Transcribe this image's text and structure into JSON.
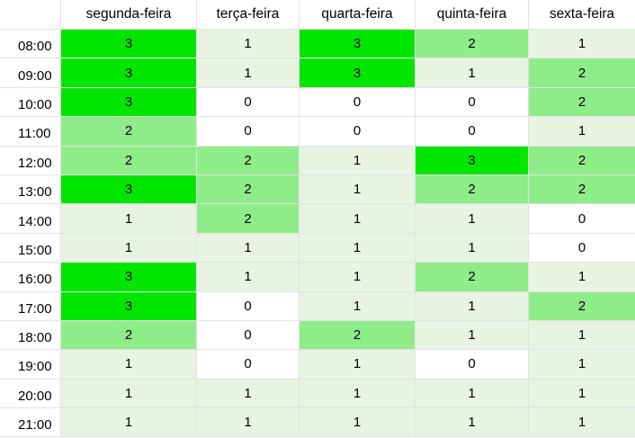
{
  "columns": [
    "segunda-feira",
    "terça-feira",
    "quarta-feira",
    "quinta-feira",
    "sexta-feira"
  ],
  "rows": [
    {
      "time": "08:00",
      "values": [
        "3",
        "1",
        "3",
        "2",
        "1"
      ]
    },
    {
      "time": "09:00",
      "values": [
        "3",
        "1",
        "3",
        "1",
        "2"
      ]
    },
    {
      "time": "10:00",
      "values": [
        "3",
        "0",
        "0",
        "0",
        "2"
      ]
    },
    {
      "time": "11:00",
      "values": [
        "2",
        "0",
        "0",
        "0",
        "1"
      ]
    },
    {
      "time": "12:00",
      "values": [
        "2",
        "2",
        "1",
        "3",
        "2"
      ]
    },
    {
      "time": "13:00",
      "values": [
        "3",
        "2",
        "1",
        "2",
        "2"
      ]
    },
    {
      "time": "14:00",
      "values": [
        "1",
        "2",
        "1",
        "1",
        "0"
      ]
    },
    {
      "time": "15:00",
      "values": [
        "1",
        "1",
        "1",
        "1",
        "0"
      ]
    },
    {
      "time": "16:00",
      "values": [
        "3",
        "1",
        "1",
        "2",
        "1"
      ]
    },
    {
      "time": "17:00",
      "values": [
        "3",
        "0",
        "1",
        "1",
        "2"
      ]
    },
    {
      "time": "18:00",
      "values": [
        "2",
        "0",
        "2",
        "1",
        "1"
      ]
    },
    {
      "time": "19:00",
      "values": [
        "1",
        "0",
        "1",
        "0",
        "1"
      ]
    },
    {
      "time": "20:00",
      "values": [
        "1",
        "1",
        "1",
        "1",
        "1"
      ]
    },
    {
      "time": "21:00",
      "values": [
        "1",
        "1",
        "1",
        "1",
        "1"
      ]
    }
  ],
  "colors": {
    "level_0": "#ffffff",
    "level_1": "#e8f3e2",
    "level_2": "#8fed89",
    "level_3": "#00e600",
    "gridline": "#e2e2e2"
  }
}
